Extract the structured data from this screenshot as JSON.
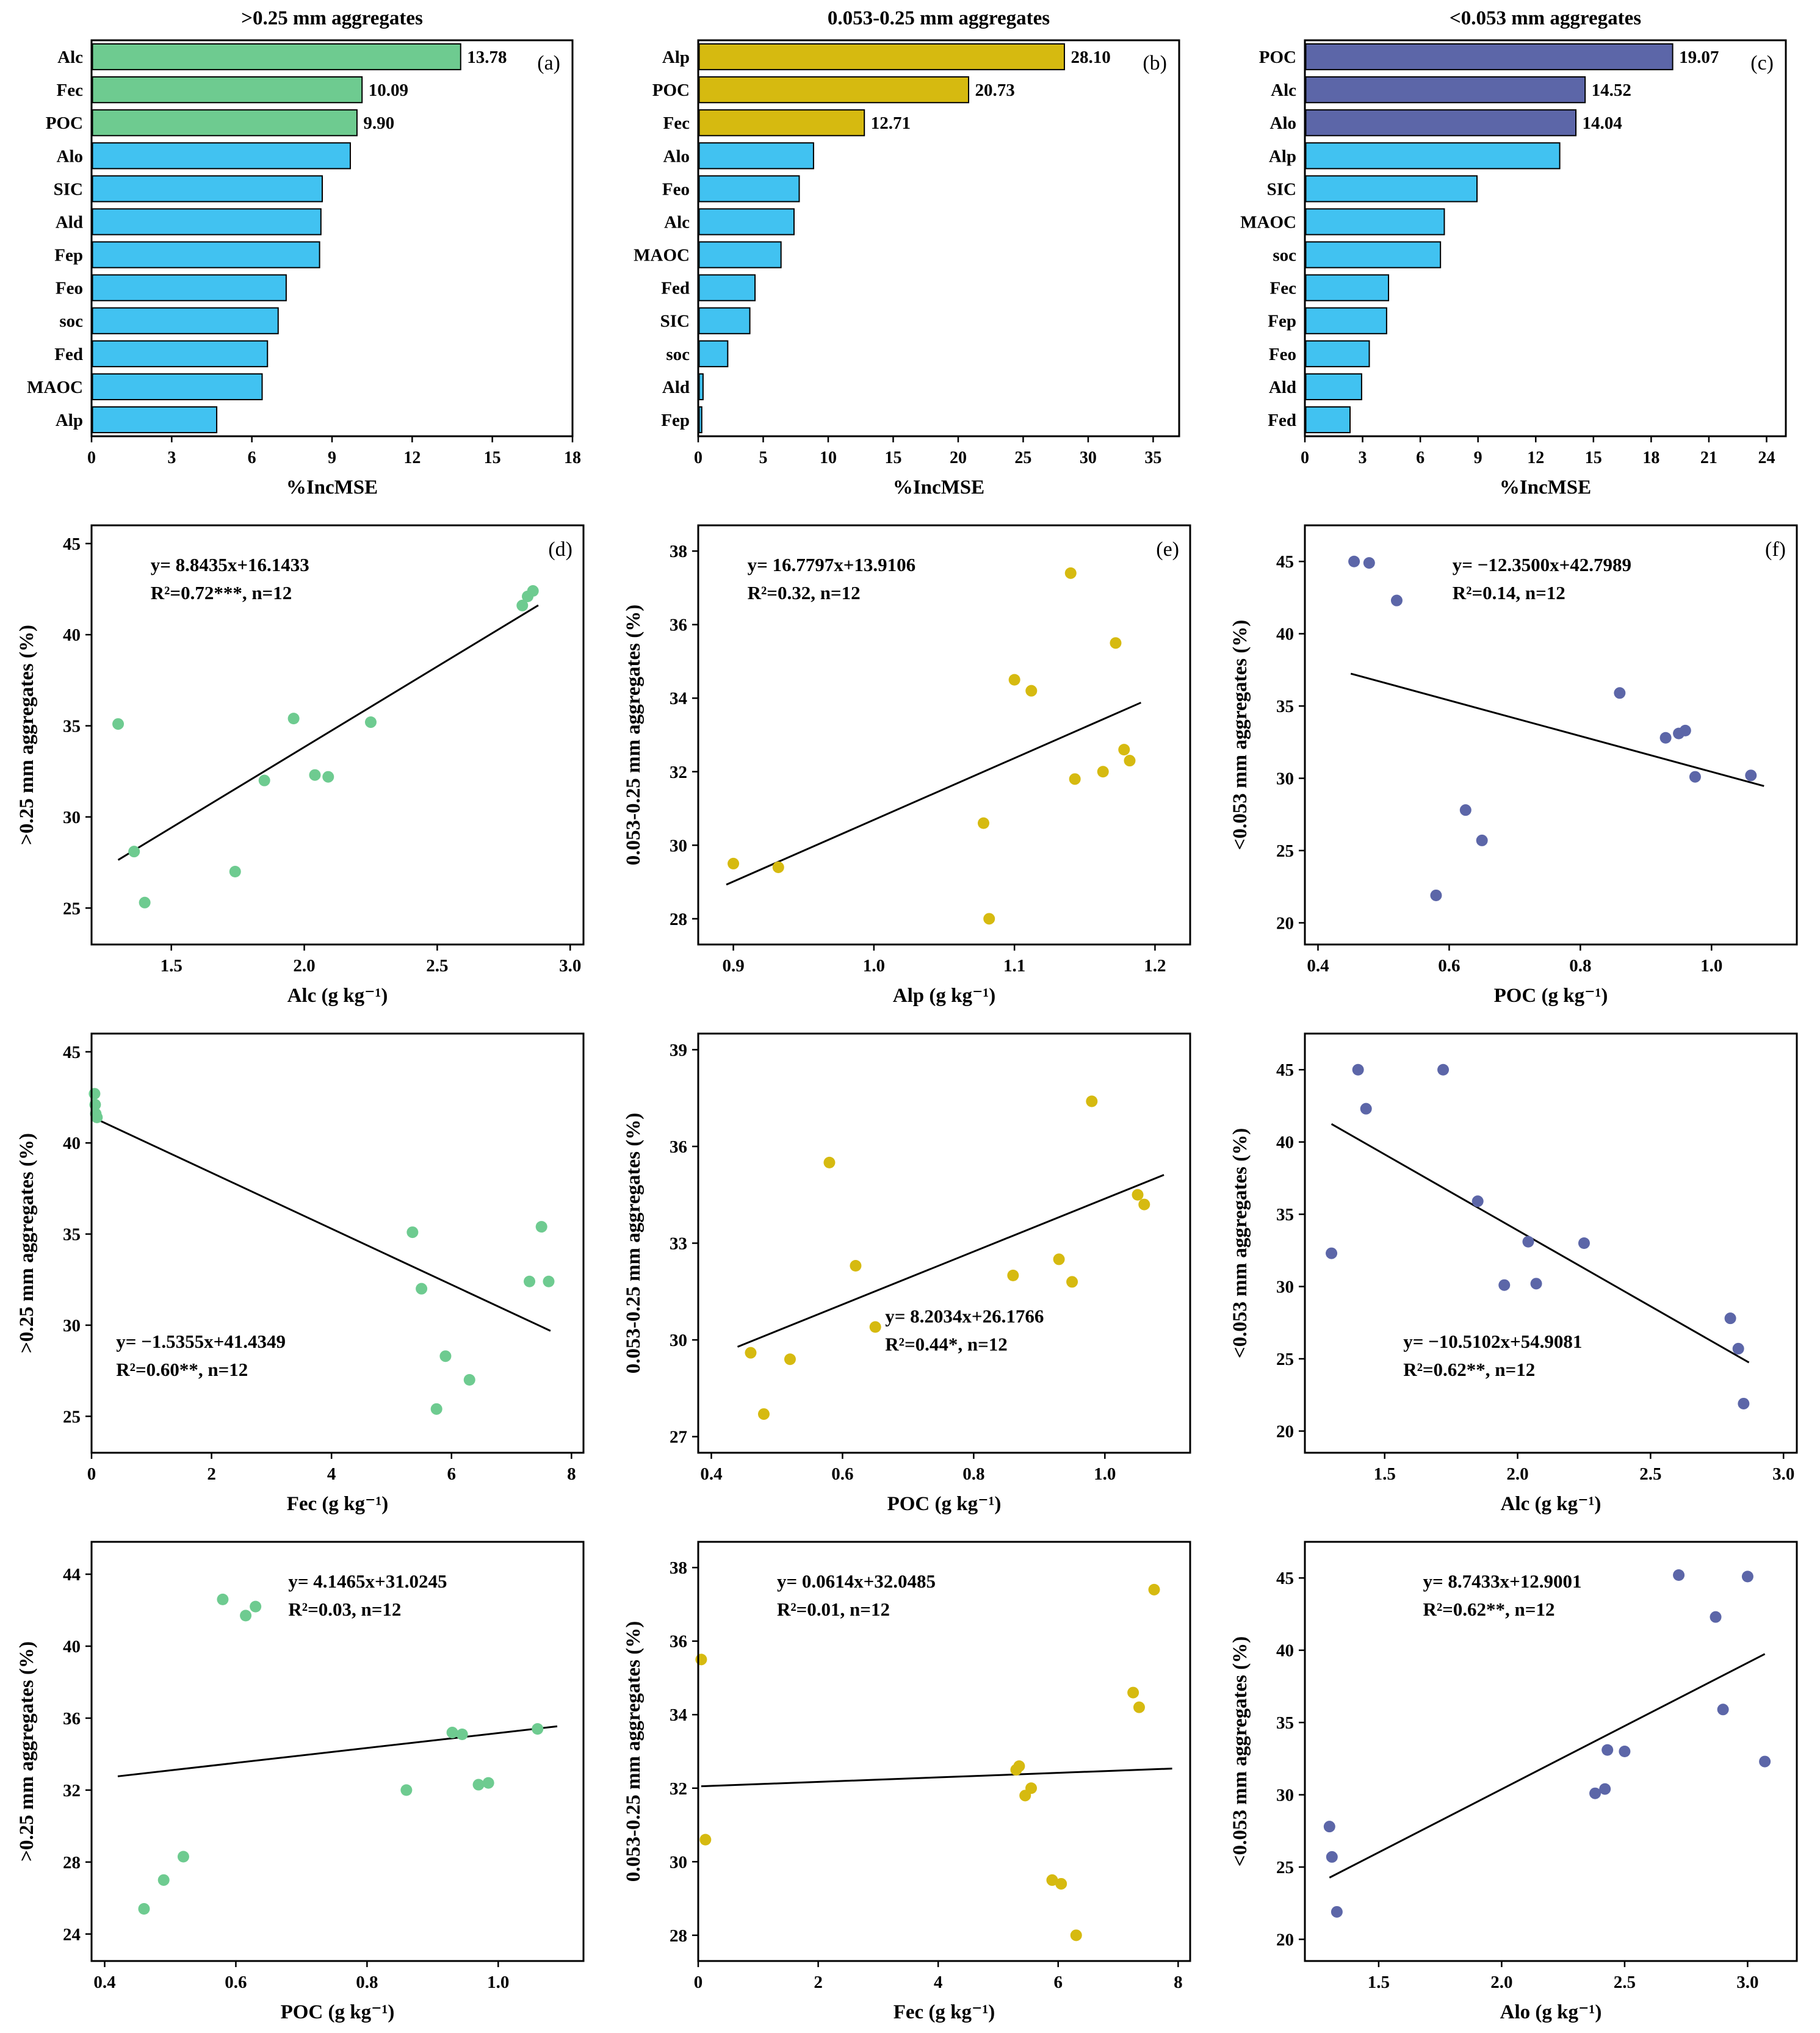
{
  "colors": {
    "green": "#6ecb90",
    "yellow": "#d6ba10",
    "cyan": "#41c2f1",
    "purple": "#5c66a8",
    "axis": "#000000",
    "background": "#ffffff"
  },
  "chart_data": [
    {
      "id": "a",
      "type": "barh",
      "title": ">0.25 mm aggregates",
      "letter": "(a)",
      "xlabel": "%IncMSE",
      "categories": [
        "Alc",
        "Fec",
        "POC",
        "Alo",
        "SIC",
        "Ald",
        "Fep",
        "Feo",
        "soc",
        "Fed",
        "MAOC",
        "Alp"
      ],
      "values": [
        13.78,
        10.09,
        9.9,
        9.65,
        8.6,
        8.55,
        8.5,
        7.25,
        6.95,
        6.55,
        6.35,
        4.65
      ],
      "labeled": 3,
      "value_labels": [
        "13.78",
        "10.09",
        "9.90"
      ],
      "bar_color_top": "green",
      "bar_color_rest": "cyan",
      "xlim": [
        0,
        18
      ],
      "xticks": [
        "0",
        "3",
        "6",
        "9",
        "12",
        "15",
        "18"
      ]
    },
    {
      "id": "b",
      "type": "barh",
      "title": "0.053-0.25 mm aggregates",
      "letter": "(b)",
      "xlabel": "%IncMSE",
      "categories": [
        "Alp",
        "POC",
        "Fec",
        "Alo",
        "Feo",
        "Alc",
        "MAOC",
        "Fed",
        "SIC",
        "soc",
        "Ald",
        "Fep"
      ],
      "values": [
        28.1,
        20.73,
        12.71,
        8.8,
        7.7,
        7.3,
        6.3,
        4.3,
        3.9,
        2.2,
        0.3,
        0.2
      ],
      "labeled": 3,
      "value_labels": [
        "28.10",
        "20.73",
        "12.71"
      ],
      "bar_color_top": "yellow",
      "bar_color_rest": "cyan",
      "xlim": [
        0,
        37
      ],
      "xticks": [
        "0",
        "5",
        "10",
        "15",
        "20",
        "25",
        "30",
        "35"
      ]
    },
    {
      "id": "c",
      "type": "barh",
      "title": "<0.053 mm aggregates",
      "letter": "(c)",
      "xlabel": "%IncMSE",
      "categories": [
        "POC",
        "Alc",
        "Alo",
        "Alp",
        "SIC",
        "MAOC",
        "soc",
        "Fec",
        "Fep",
        "Feo",
        "Ald",
        "Fed"
      ],
      "values": [
        19.07,
        14.52,
        14.04,
        13.2,
        8.9,
        7.2,
        7.0,
        4.3,
        4.2,
        3.3,
        2.9,
        2.3
      ],
      "labeled": 3,
      "value_labels": [
        "19.07",
        "14.52",
        "14.04"
      ],
      "bar_color_top": "purple",
      "bar_color_rest": "cyan",
      "xlim": [
        0,
        25
      ],
      "xticks": [
        "0",
        "3",
        "6",
        "9",
        "12",
        "15",
        "18",
        "21",
        "24"
      ]
    },
    {
      "id": "d",
      "type": "scatter",
      "letter": "(d)",
      "color": "green",
      "xlabel": "Alc (g kg⁻¹)",
      "ylabel": ">0.25 mm aggregates (%)",
      "xlim": [
        1.2,
        3.05
      ],
      "xticks": [
        "1.5",
        "2.0",
        "2.5",
        "3.0"
      ],
      "ylim": [
        23,
        46
      ],
      "yticks": [
        "25",
        "30",
        "35",
        "40",
        "45"
      ],
      "points": [
        [
          1.3,
          35.1
        ],
        [
          1.36,
          28.1
        ],
        [
          1.4,
          25.3
        ],
        [
          1.74,
          27.0
        ],
        [
          1.85,
          32.0
        ],
        [
          1.96,
          35.4
        ],
        [
          2.04,
          32.3
        ],
        [
          2.09,
          32.2
        ],
        [
          2.25,
          35.2
        ],
        [
          2.82,
          41.6
        ],
        [
          2.84,
          42.1
        ],
        [
          2.86,
          42.4
        ]
      ],
      "line": {
        "slope": 8.8435,
        "intercept": 16.1433,
        "x1": 1.3,
        "x2": 2.88
      },
      "annotation": [
        "y= 8.8435x+16.1433",
        "R²=0.72***, n=12"
      ],
      "ann_pos": [
        0.12,
        0.06
      ]
    },
    {
      "id": "e",
      "type": "scatter",
      "letter": "(e)",
      "color": "yellow",
      "xlabel": "Alp (g kg⁻¹)",
      "ylabel": "0.053-0.25 mm aggregates (%)",
      "xlim": [
        0.875,
        1.225
      ],
      "xticks": [
        "0.9",
        "1.0",
        "1.1",
        "1.2"
      ],
      "ylim": [
        27.3,
        38.7
      ],
      "yticks": [
        "28",
        "30",
        "32",
        "34",
        "36",
        "38"
      ],
      "points": [
        [
          0.9,
          29.5
        ],
        [
          0.932,
          29.4
        ],
        [
          1.078,
          30.6
        ],
        [
          1.082,
          28.0
        ],
        [
          1.1,
          34.5
        ],
        [
          1.112,
          34.2
        ],
        [
          1.14,
          37.4
        ],
        [
          1.143,
          31.8
        ],
        [
          1.163,
          32.0
        ],
        [
          1.172,
          35.5
        ],
        [
          1.178,
          32.6
        ],
        [
          1.182,
          32.3
        ]
      ],
      "line": {
        "slope": 16.7797,
        "intercept": 13.9106,
        "x1": 0.895,
        "x2": 1.19
      },
      "annotation": [
        "y= 16.7797x+13.9106",
        "R²=0.32, n=12"
      ],
      "ann_pos": [
        0.1,
        0.06
      ]
    },
    {
      "id": "f",
      "type": "scatter",
      "letter": "(f)",
      "color": "purple",
      "xlabel": "POC (g kg⁻¹)",
      "ylabel": "<0.053 mm aggregates (%)",
      "xlim": [
        0.38,
        1.13
      ],
      "xticks": [
        "0.4",
        "0.6",
        "0.8",
        "1.0"
      ],
      "ylim": [
        18.5,
        47.5
      ],
      "yticks": [
        "20",
        "25",
        "30",
        "35",
        "40",
        "45"
      ],
      "points": [
        [
          0.455,
          45.0
        ],
        [
          0.478,
          44.9
        ],
        [
          0.52,
          42.3
        ],
        [
          0.58,
          21.9
        ],
        [
          0.625,
          27.8
        ],
        [
          0.65,
          25.7
        ],
        [
          0.86,
          35.9
        ],
        [
          0.93,
          32.8
        ],
        [
          0.95,
          33.1
        ],
        [
          0.96,
          33.3
        ],
        [
          0.975,
          30.1
        ],
        [
          1.06,
          30.2
        ]
      ],
      "line": {
        "slope": -12.35,
        "intercept": 42.7989,
        "x1": 0.45,
        "x2": 1.08
      },
      "annotation": [
        "y= −12.3500x+42.7989",
        "R²=0.14, n=12"
      ],
      "ann_pos": [
        0.3,
        0.06
      ]
    },
    {
      "id": "g",
      "type": "scatter",
      "letter": "",
      "color": "green",
      "xlabel": "Fec (g kg⁻¹)",
      "ylabel": ">0.25 mm aggregates (%)",
      "xlim": [
        0,
        8.2
      ],
      "xticks": [
        "0",
        "2",
        "4",
        "6",
        "8"
      ],
      "ylim": [
        23,
        46
      ],
      "yticks": [
        "25",
        "30",
        "35",
        "40",
        "45"
      ],
      "points": [
        [
          0.05,
          42.7
        ],
        [
          0.06,
          42.1
        ],
        [
          0.07,
          41.6
        ],
        [
          0.09,
          41.4
        ],
        [
          5.35,
          35.1
        ],
        [
          5.5,
          32.0
        ],
        [
          5.75,
          25.4
        ],
        [
          5.9,
          28.3
        ],
        [
          6.3,
          27.0
        ],
        [
          7.3,
          32.4
        ],
        [
          7.5,
          35.4
        ],
        [
          7.62,
          32.4
        ]
      ],
      "line": {
        "slope": -1.5355,
        "intercept": 41.4349,
        "x1": 0.02,
        "x2": 7.65
      },
      "annotation": [
        "y= −1.5355x+41.4349",
        "R²=0.60**, n=12"
      ],
      "ann_pos": [
        0.05,
        0.7
      ]
    },
    {
      "id": "h",
      "type": "scatter",
      "letter": "",
      "color": "yellow",
      "xlabel": "POC (g kg⁻¹)",
      "ylabel": "0.053-0.25 mm aggregates (%)",
      "xlim": [
        0.38,
        1.13
      ],
      "xticks": [
        "0.4",
        "0.6",
        "0.8",
        "1.0"
      ],
      "ylim": [
        26.5,
        39.5
      ],
      "yticks": [
        "27",
        "30",
        "33",
        "36",
        "39"
      ],
      "points": [
        [
          0.46,
          29.6
        ],
        [
          0.48,
          27.7
        ],
        [
          0.52,
          29.4
        ],
        [
          0.58,
          35.5
        ],
        [
          0.62,
          32.3
        ],
        [
          0.65,
          30.4
        ],
        [
          0.86,
          32.0
        ],
        [
          0.93,
          32.5
        ],
        [
          0.95,
          31.8
        ],
        [
          0.98,
          37.4
        ],
        [
          1.05,
          34.5
        ],
        [
          1.06,
          34.2
        ]
      ],
      "line": {
        "slope": 8.2034,
        "intercept": 26.1766,
        "x1": 0.44,
        "x2": 1.09
      },
      "annotation": [
        "y= 8.2034x+26.1766",
        "R²=0.44*, n=12"
      ],
      "ann_pos": [
        0.38,
        0.64
      ]
    },
    {
      "id": "i",
      "type": "scatter",
      "letter": "",
      "color": "purple",
      "xlabel": "Alc (g kg⁻¹)",
      "ylabel": "<0.053 mm aggregates (%)",
      "xlim": [
        1.2,
        3.05
      ],
      "xticks": [
        "1.5",
        "2.0",
        "2.5",
        "3.0"
      ],
      "ylim": [
        18.5,
        47.5
      ],
      "yticks": [
        "20",
        "25",
        "30",
        "35",
        "40",
        "45"
      ],
      "points": [
        [
          1.3,
          32.3
        ],
        [
          1.4,
          45.0
        ],
        [
          1.43,
          42.3
        ],
        [
          1.72,
          45.0
        ],
        [
          1.85,
          35.9
        ],
        [
          1.95,
          30.1
        ],
        [
          2.04,
          33.1
        ],
        [
          2.07,
          30.2
        ],
        [
          2.25,
          33.0
        ],
        [
          2.8,
          27.8
        ],
        [
          2.83,
          25.7
        ],
        [
          2.85,
          21.9
        ]
      ],
      "line": {
        "slope": -10.5102,
        "intercept": 54.9081,
        "x1": 1.3,
        "x2": 2.87
      },
      "annotation": [
        "y= −10.5102x+54.9081",
        "R²=0.62**, n=12"
      ],
      "ann_pos": [
        0.2,
        0.7
      ]
    },
    {
      "id": "j",
      "type": "scatter",
      "letter": "",
      "color": "green",
      "xlabel": "POC (g kg⁻¹)",
      "ylabel": ">0.25 mm aggregates (%)",
      "xlim": [
        0.38,
        1.13
      ],
      "xticks": [
        "0.4",
        "0.6",
        "0.8",
        "1.0"
      ],
      "ylim": [
        22.5,
        45.8
      ],
      "yticks": [
        "24",
        "28",
        "32",
        "36",
        "40",
        "44"
      ],
      "points": [
        [
          0.46,
          25.4
        ],
        [
          0.49,
          27.0
        ],
        [
          0.52,
          28.3
        ],
        [
          0.58,
          42.6
        ],
        [
          0.615,
          41.7
        ],
        [
          0.63,
          42.2
        ],
        [
          0.86,
          32.0
        ],
        [
          0.93,
          35.2
        ],
        [
          0.945,
          35.1
        ],
        [
          0.97,
          32.3
        ],
        [
          0.985,
          32.4
        ],
        [
          1.06,
          35.4
        ]
      ],
      "line": {
        "slope": 4.1465,
        "intercept": 31.0245,
        "x1": 0.42,
        "x2": 1.09
      },
      "annotation": [
        "y= 4.1465x+31.0245",
        "R²=0.03, n=12"
      ],
      "ann_pos": [
        0.4,
        0.06
      ]
    },
    {
      "id": "k",
      "type": "scatter",
      "letter": "",
      "color": "yellow",
      "xlabel": "Fec (g kg⁻¹)",
      "ylabel": "0.053-0.25 mm aggregates (%)",
      "xlim": [
        0,
        8.2
      ],
      "xticks": [
        "0",
        "2",
        "4",
        "6",
        "8"
      ],
      "ylim": [
        27.3,
        38.7
      ],
      "yticks": [
        "28",
        "30",
        "32",
        "34",
        "36",
        "38"
      ],
      "points": [
        [
          0.05,
          35.5
        ],
        [
          0.12,
          30.6
        ],
        [
          5.3,
          32.5
        ],
        [
          5.35,
          32.6
        ],
        [
          5.45,
          31.8
        ],
        [
          5.55,
          32.0
        ],
        [
          5.9,
          29.5
        ],
        [
          6.05,
          29.4
        ],
        [
          6.3,
          28.0
        ],
        [
          7.25,
          34.6
        ],
        [
          7.35,
          34.2
        ],
        [
          7.6,
          37.4
        ]
      ],
      "line": {
        "slope": 0.0614,
        "intercept": 32.0485,
        "x1": 0.05,
        "x2": 7.9
      },
      "annotation": [
        "y= 0.0614x+32.0485",
        "R²=0.01, n=12"
      ],
      "ann_pos": [
        0.16,
        0.06
      ]
    },
    {
      "id": "l",
      "type": "scatter",
      "letter": "",
      "color": "purple",
      "xlabel": "Alo (g kg⁻¹)",
      "ylabel": "<0.053 mm aggregates (%)",
      "xlim": [
        1.2,
        3.2
      ],
      "xticks": [
        "1.5",
        "2.0",
        "2.5",
        "3.0"
      ],
      "ylim": [
        18.5,
        47.5
      ],
      "yticks": [
        "20",
        "25",
        "30",
        "35",
        "40",
        "45"
      ],
      "points": [
        [
          1.3,
          27.8
        ],
        [
          1.31,
          25.7
        ],
        [
          1.33,
          21.9
        ],
        [
          2.38,
          30.1
        ],
        [
          2.42,
          30.4
        ],
        [
          2.43,
          33.1
        ],
        [
          2.5,
          33.0
        ],
        [
          2.72,
          45.2
        ],
        [
          2.87,
          42.3
        ],
        [
          2.9,
          35.9
        ],
        [
          3.0,
          45.1
        ],
        [
          3.07,
          32.3
        ]
      ],
      "line": {
        "slope": 8.7433,
        "intercept": 12.9001,
        "x1": 1.3,
        "x2": 3.07
      },
      "annotation": [
        "y= 8.7433x+12.9001",
        "R²=0.62**, n=12"
      ],
      "ann_pos": [
        0.24,
        0.06
      ]
    }
  ]
}
